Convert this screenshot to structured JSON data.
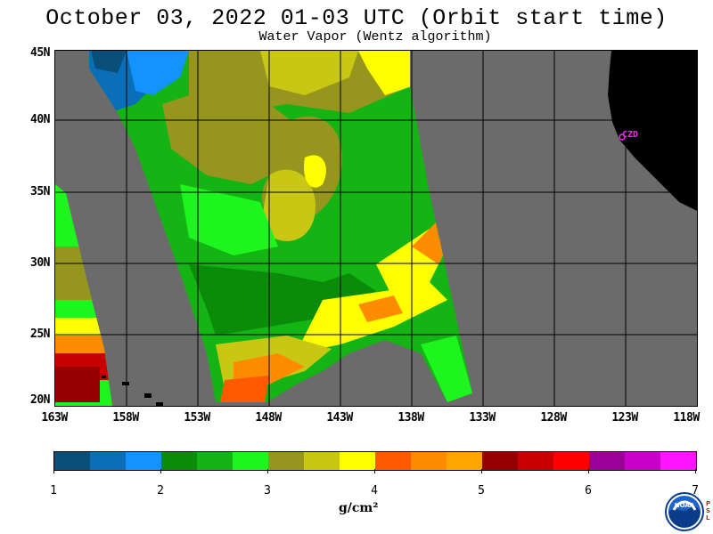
{
  "title": "October 03, 2022  01-03 UTC  (Orbit start time)",
  "subtitle": "Water Vapor (Wentz algorithm)",
  "map": {
    "lat_labels": [
      "45N",
      "40N",
      "35N",
      "30N",
      "25N",
      "20N"
    ],
    "lon_labels": [
      "163W",
      "158W",
      "153W",
      "148W",
      "143W",
      "138W",
      "133W",
      "128W",
      "123W",
      "118W"
    ],
    "station_label": "CZD",
    "colors": {
      "no_data": "#6b6b6b",
      "land": "#000000",
      "station": "#ff22ff"
    }
  },
  "colorbar": {
    "colors": [
      "#0a4f7a",
      "#0a6eb8",
      "#1493ff",
      "#0a8c0a",
      "#14b414",
      "#1ef51e",
      "#96961e",
      "#c8c814",
      "#ffff00",
      "#ff5a00",
      "#ff8c00",
      "#ffa500",
      "#960000",
      "#c80000",
      "#ff0000",
      "#9b009b",
      "#c800c8",
      "#ff14ff"
    ],
    "tick_labels": [
      "1",
      "2",
      "3",
      "4",
      "5",
      "6",
      "7"
    ],
    "units": "g/cm²"
  },
  "logo": {
    "name": "NOAA",
    "side_text": "PSL"
  }
}
